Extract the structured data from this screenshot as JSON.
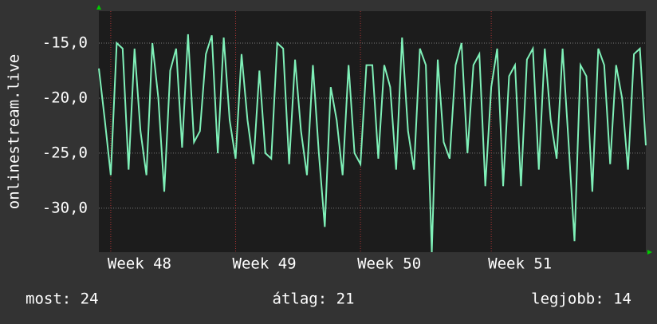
{
  "chart_data": {
    "type": "line",
    "y_label": "onlinestream.live",
    "categories": [
      null,
      null,
      "Week 48",
      null,
      null,
      null,
      null,
      null,
      null,
      null,
      null,
      null,
      null,
      null,
      null,
      null,
      null,
      null,
      null,
      null,
      null,
      null,
      null,
      "Week 49",
      null,
      null,
      null,
      null,
      null,
      null,
      null,
      null,
      null,
      null,
      null,
      null,
      null,
      null,
      null,
      null,
      null,
      null,
      null,
      null,
      "Week 50",
      null,
      null,
      null,
      null,
      null,
      null,
      null,
      null,
      null,
      null,
      null,
      null,
      null,
      null,
      null,
      null,
      null,
      null,
      null,
      null,
      null,
      "Week 51",
      null,
      null,
      null,
      null,
      null,
      null,
      null,
      null,
      null,
      null,
      null,
      null,
      null,
      null,
      null,
      null,
      null,
      null,
      null,
      null,
      null,
      null,
      null,
      null,
      null,
      null
    ],
    "series": [
      {
        "color": "#7ff0b8",
        "values": [
          -17.3,
          -22,
          -27,
          -15,
          -15.5,
          -26.5,
          -15.5,
          -23,
          -27,
          -15,
          -20,
          -28.5,
          -17.5,
          -15.5,
          -24.5,
          -14.2,
          -24,
          -23,
          -16,
          -14.3,
          -25,
          -14.5,
          -22,
          -25.5,
          -16,
          -22,
          -26,
          -17.5,
          -25,
          -25.5,
          -15,
          -15.5,
          -26,
          -16.5,
          -23,
          -27,
          -17,
          -25,
          -31.7,
          -19,
          -22,
          -27,
          -17,
          -25,
          -26,
          -17,
          -17,
          -25.5,
          -17,
          -19,
          -26.5,
          -14.5,
          -23,
          -26.5,
          -15.5,
          -17,
          -34,
          -16.5,
          -24,
          -25.5,
          -17,
          -15,
          -25,
          -17,
          -16,
          -28,
          -19,
          -15.5,
          -28,
          -18,
          -17,
          -28,
          -16.5,
          -15.5,
          -26.5,
          -15.5,
          -22,
          -25.5,
          -15.5,
          -24,
          -33,
          -17,
          -18,
          -28.5,
          -15.5,
          -17,
          -26,
          -17,
          -20,
          -26.5,
          -16,
          -15.5,
          -24.3
        ]
      }
    ],
    "ylim": [
      -34,
      -12.1
    ],
    "yticks": [
      {
        "value": -15,
        "label": "-15,0"
      },
      {
        "value": -20,
        "label": "-20,0"
      },
      {
        "value": -25,
        "label": "-25,0"
      },
      {
        "value": -30,
        "label": "-30,0"
      }
    ],
    "grid": true,
    "annotations": [
      "most: 24",
      "átlag: 21",
      "legjobb: 14"
    ]
  }
}
